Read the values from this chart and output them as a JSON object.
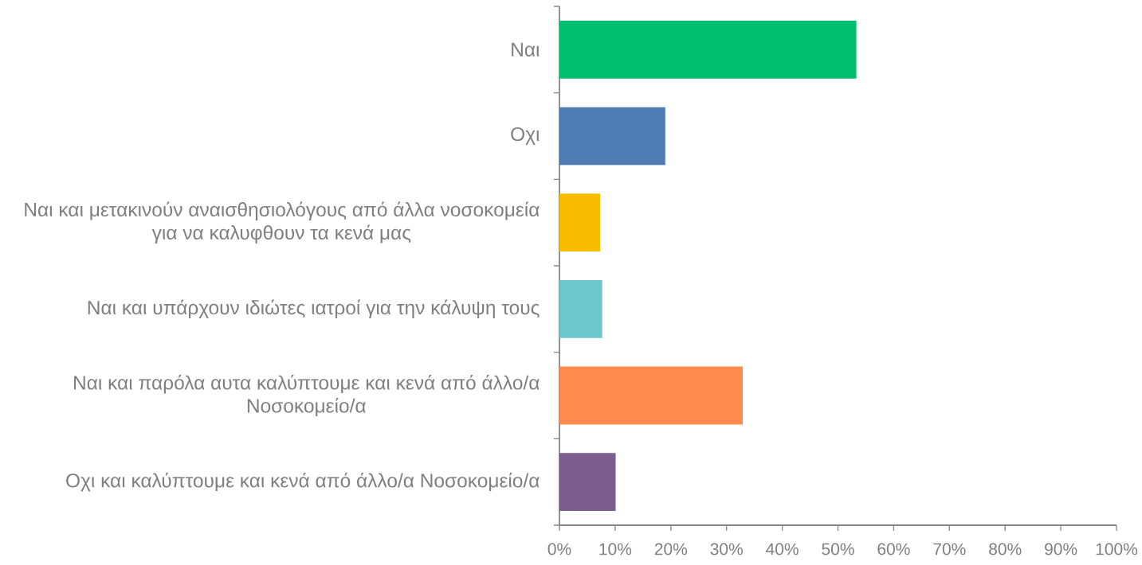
{
  "chart_data": {
    "type": "bar",
    "orientation": "horizontal",
    "categories": [
      "Ναι",
      "Οχι",
      "Ναι και μετακινούν αναισθησιολόγους από άλλα νοσοκομεία για να καλυφθουν τα κενά μας",
      "Ναι και υπάρχουν ιδιώτες ιατροί για την κάλυψη τους",
      "Ναι και παρόλα αυτα καλύπτουμε και κενά από άλλο/α Νοσοκομείο/α",
      "Οχι και καλύπτουμε και κενά από άλλο/α Νοσοκομείο/α"
    ],
    "values": [
      53.3,
      19.0,
      7.3,
      7.7,
      32.9,
      10.1
    ],
    "colors": [
      "#00bf6f",
      "#4f7cb3",
      "#f8bd00",
      "#6cc8cc",
      "#ff8b4f",
      "#7b5e8f"
    ],
    "xlim": [
      0,
      100
    ],
    "xticks": [
      {
        "value": 0,
        "label": "0%"
      },
      {
        "value": 10,
        "label": "10%"
      },
      {
        "value": 20,
        "label": "20%"
      },
      {
        "value": 30,
        "label": "30%"
      },
      {
        "value": 40,
        "label": "40%"
      },
      {
        "value": 50,
        "label": "50%"
      },
      {
        "value": 60,
        "label": "60%"
      },
      {
        "value": 70,
        "label": "70%"
      },
      {
        "value": 80,
        "label": "80%"
      },
      {
        "value": 90,
        "label": "90%"
      },
      {
        "value": 100,
        "label": "100%"
      }
    ]
  }
}
